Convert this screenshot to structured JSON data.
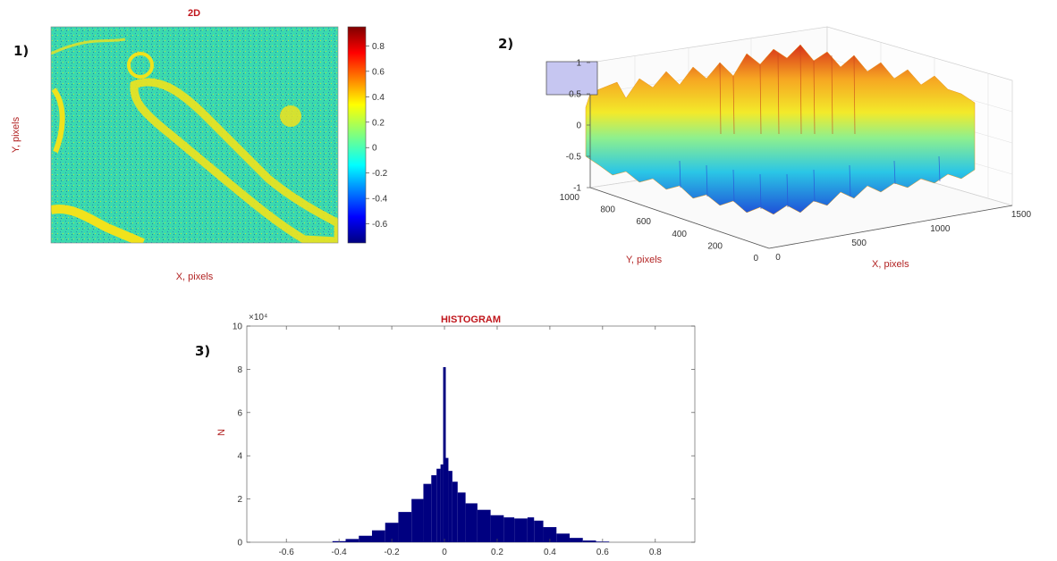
{
  "panels": {
    "p1": {
      "number": "1)"
    },
    "p2": {
      "number": "2)"
    },
    "p3": {
      "number": "3)"
    }
  },
  "chart_data": [
    {
      "type": "heatmap",
      "title": "2D",
      "xlabel": "X, pixels",
      "ylabel": "Y, pixels",
      "colorbar": {
        "range": [
          -0.75,
          0.95
        ],
        "ticks": [
          -0.6,
          -0.4,
          -0.2,
          0,
          0.2,
          0.4,
          0.6,
          0.8
        ],
        "tick_labels": [
          "-0.6",
          "-0.4",
          "-0.2",
          "0",
          "0.2",
          "0.4",
          "0.6",
          "0.8"
        ],
        "colormap": "jet"
      },
      "colors": {
        "background": "#33d8b0",
        "feature": "#f0e21c",
        "noise": "#1a3fb8"
      }
    },
    {
      "type": "area",
      "subtype": "surface3d",
      "xlabel": "X, pixels",
      "ylabel": "Y, pixels",
      "z_ticks": [
        -1,
        -0.5,
        0,
        0.5,
        1
      ],
      "z_tick_labels": [
        "-1",
        "-0.5",
        "0",
        "0.5",
        "1"
      ],
      "x_ticks": [
        0,
        500,
        1000,
        1500
      ],
      "x_tick_labels": [
        "0",
        "500",
        "1000",
        "1500"
      ],
      "y_ticks": [
        0,
        200,
        400,
        600,
        800,
        1000
      ],
      "y_tick_labels": [
        "0",
        "200",
        "400",
        "600",
        "800",
        "1000"
      ],
      "zlim": [
        -1,
        1
      ],
      "xlim": [
        0,
        1500
      ],
      "ylim": [
        0,
        1000
      ],
      "colormap": "jet"
    },
    {
      "type": "bar",
      "subtype": "histogram",
      "title": "HISTOGRAM",
      "xlabel": "",
      "ylabel": "N",
      "y_multiplier": "×10⁴",
      "xlim": [
        -0.75,
        0.95
      ],
      "ylim": [
        0,
        10
      ],
      "x_ticks": [
        -0.6,
        -0.4,
        -0.2,
        0,
        0.2,
        0.4,
        0.6,
        0.8
      ],
      "x_tick_labels": [
        "-0.6",
        "-0.4",
        "-0.2",
        "0",
        "0.2",
        "0.4",
        "0.6",
        "0.8"
      ],
      "y_ticks": [
        0,
        2,
        4,
        6,
        8,
        10
      ],
      "y_tick_labels": [
        "0",
        "2",
        "4",
        "6",
        "8",
        "10"
      ],
      "bar_color": "#000080",
      "x": [
        -0.4,
        -0.35,
        -0.3,
        -0.25,
        -0.2,
        -0.15,
        -0.1,
        -0.06,
        -0.04,
        -0.02,
        -0.01,
        0.0,
        0.01,
        0.02,
        0.04,
        0.06,
        0.1,
        0.15,
        0.2,
        0.25,
        0.28,
        0.3,
        0.33,
        0.35,
        0.4,
        0.45,
        0.5,
        0.55,
        0.6
      ],
      "values": [
        0.05,
        0.15,
        0.3,
        0.55,
        0.9,
        1.4,
        2.0,
        2.7,
        3.1,
        3.4,
        3.6,
        8.1,
        3.9,
        3.3,
        2.8,
        2.3,
        1.8,
        1.5,
        1.25,
        1.15,
        1.1,
        1.1,
        1.15,
        1.0,
        0.7,
        0.4,
        0.2,
        0.08,
        0.03
      ]
    }
  ]
}
